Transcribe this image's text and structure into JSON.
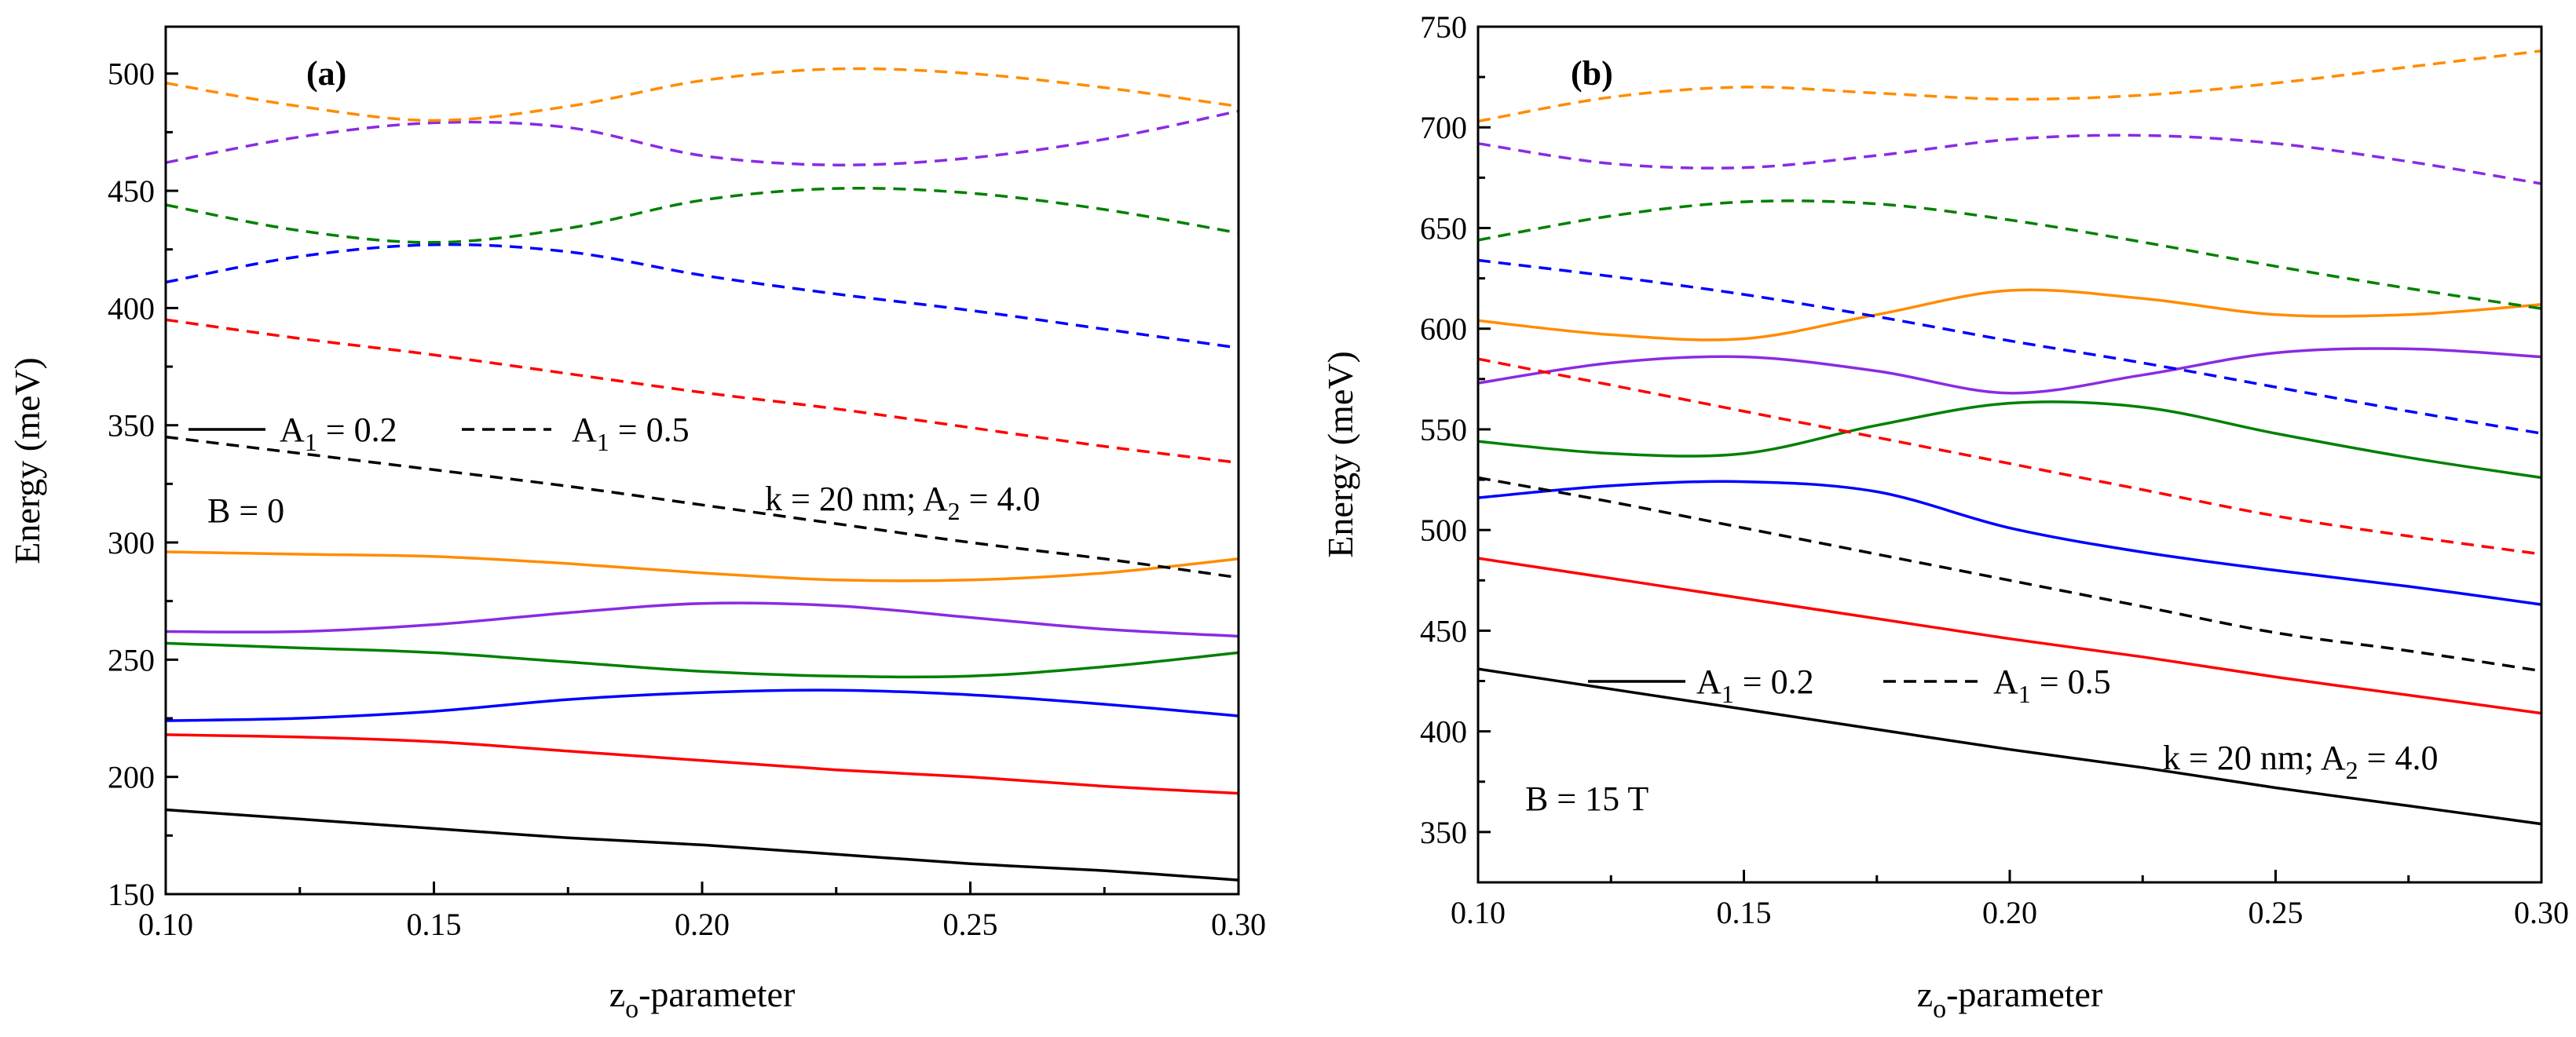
{
  "chart_data": [
    {
      "type": "line",
      "panel_label": "(a)",
      "xlabel": {
        "main": "z",
        "sub": "o",
        "rest": "-parameter"
      },
      "ylabel": "Energy (meV)",
      "xlim": [
        0.1,
        0.3
      ],
      "ylim": [
        150,
        520
      ],
      "xticks": [
        "0.10",
        "0.15",
        "0.20",
        "0.25",
        "0.30"
      ],
      "yticks": [
        "150",
        "200",
        "250",
        "300",
        "350",
        "400",
        "450",
        "500"
      ],
      "legend": {
        "solid": {
          "pre": "A",
          "sub": "1",
          "post": " = 0.2"
        },
        "dashed": {
          "pre": "A",
          "sub": "1",
          "post": " = 0.5"
        }
      },
      "annotations": {
        "field": "B = 0",
        "params": {
          "pre": "k = 20 nm; A",
          "sub": "2",
          "post": " = 4.0"
        }
      },
      "x": [
        0.1,
        0.125,
        0.15,
        0.175,
        0.2,
        0.225,
        0.25,
        0.275,
        0.3
      ],
      "series": [
        {
          "name": "solid-black",
          "style": "solid",
          "color": "#000000",
          "values": [
            186,
            182,
            178,
            174,
            171,
            167,
            163,
            160,
            156
          ]
        },
        {
          "name": "solid-red",
          "style": "solid",
          "color": "#ff0000",
          "values": [
            218,
            217,
            215,
            211,
            207,
            203,
            200,
            196,
            193
          ]
        },
        {
          "name": "solid-blue",
          "style": "solid",
          "color": "#0000ff",
          "values": [
            224,
            225,
            228,
            233,
            236,
            237,
            235,
            231,
            226
          ]
        },
        {
          "name": "solid-green",
          "style": "solid",
          "color": "#008000",
          "values": [
            257,
            255,
            253,
            249,
            245,
            243,
            243,
            247,
            253
          ]
        },
        {
          "name": "solid-violet",
          "style": "solid",
          "color": "#8a2be2",
          "values": [
            262,
            262,
            265,
            270,
            274,
            273,
            268,
            263,
            260
          ]
        },
        {
          "name": "solid-orange",
          "style": "solid",
          "color": "#ff8c00",
          "values": [
            296,
            295,
            294,
            291,
            287,
            284,
            284,
            287,
            293
          ]
        },
        {
          "name": "dashed-black",
          "style": "dashed",
          "color": "#000000",
          "values": [
            345,
            338,
            331,
            324,
            316,
            308,
            300,
            293,
            285
          ]
        },
        {
          "name": "dashed-red",
          "style": "dashed",
          "color": "#ff0000",
          "values": [
            395,
            387,
            380,
            372,
            364,
            357,
            349,
            341,
            334
          ]
        },
        {
          "name": "dashed-blue",
          "style": "dashed",
          "color": "#0000ff",
          "values": [
            411,
            422,
            427,
            424,
            414,
            406,
            399,
            391,
            383
          ]
        },
        {
          "name": "dashed-green",
          "style": "dashed",
          "color": "#008000",
          "values": [
            444,
            433,
            428,
            434,
            446,
            451,
            449,
            442,
            432
          ]
        },
        {
          "name": "dashed-violet",
          "style": "dashed",
          "color": "#8a2be2",
          "values": [
            462,
            473,
            479,
            477,
            465,
            461,
            464,
            472,
            484
          ]
        },
        {
          "name": "dashed-orange",
          "style": "dashed",
          "color": "#ff8c00",
          "values": [
            496,
            486,
            480,
            486,
            497,
            502,
            500,
            494,
            486
          ]
        }
      ]
    },
    {
      "type": "line",
      "panel_label": "(b)",
      "xlabel": {
        "main": "z",
        "sub": "o",
        "rest": "-parameter"
      },
      "ylabel": "Energy (meV)",
      "xlim": [
        0.1,
        0.3
      ],
      "ylim": [
        325,
        750
      ],
      "xticks": [
        "0.10",
        "0.15",
        "0.20",
        "0.25",
        "0.30"
      ],
      "yticks": [
        "350",
        "400",
        "450",
        "500",
        "550",
        "600",
        "650",
        "700",
        "750"
      ],
      "legend": {
        "solid": {
          "pre": "A",
          "sub": "1",
          "post": " = 0.2"
        },
        "dashed": {
          "pre": "A",
          "sub": "1",
          "post": " = 0.5"
        }
      },
      "annotations": {
        "field": "B = 15 T",
        "params": {
          "pre": "k = 20 nm; A",
          "sub": "2",
          "post": " = 4.0"
        }
      },
      "x": [
        0.1,
        0.125,
        0.15,
        0.175,
        0.2,
        0.225,
        0.25,
        0.275,
        0.3
      ],
      "series": [
        {
          "name": "solid-black",
          "style": "solid",
          "color": "#000000",
          "values": [
            431,
            421,
            411,
            401,
            391,
            382,
            372,
            363,
            354
          ]
        },
        {
          "name": "solid-red",
          "style": "solid",
          "color": "#ff0000",
          "values": [
            486,
            476,
            466,
            456,
            446,
            437,
            427,
            418,
            409
          ]
        },
        {
          "name": "solid-blue",
          "style": "solid",
          "color": "#0000ff",
          "values": [
            516,
            522,
            524,
            519,
            501,
            489,
            480,
            472,
            463
          ]
        },
        {
          "name": "solid-green",
          "style": "solid",
          "color": "#008000",
          "values": [
            544,
            538,
            538,
            552,
            563,
            561,
            548,
            536,
            526
          ]
        },
        {
          "name": "solid-violet",
          "style": "solid",
          "color": "#8a2be2",
          "values": [
            573,
            583,
            586,
            579,
            568,
            577,
            588,
            590,
            586
          ]
        },
        {
          "name": "solid-orange",
          "style": "solid",
          "color": "#ff8c00",
          "values": [
            604,
            597,
            595,
            607,
            619,
            615,
            607,
            607,
            612
          ]
        },
        {
          "name": "dashed-black",
          "style": "dashed",
          "color": "#000000",
          "values": [
            526,
            514,
            501,
            488,
            475,
            462,
            449,
            440,
            430
          ]
        },
        {
          "name": "dashed-red",
          "style": "dashed",
          "color": "#ff0000",
          "values": [
            585,
            572,
            559,
            546,
            533,
            520,
            507,
            497,
            488
          ]
        },
        {
          "name": "dashed-blue",
          "style": "dashed",
          "color": "#0000ff",
          "values": [
            634,
            626,
            617,
            606,
            594,
            583,
            571,
            559,
            548
          ]
        },
        {
          "name": "dashed-green",
          "style": "dashed",
          "color": "#008000",
          "values": [
            644,
            656,
            663,
            662,
            654,
            643,
            631,
            620,
            610
          ]
        },
        {
          "name": "dashed-violet",
          "style": "dashed",
          "color": "#8a2be2",
          "values": [
            692,
            682,
            680,
            686,
            694,
            696,
            692,
            683,
            672
          ]
        },
        {
          "name": "dashed-orange",
          "style": "dashed",
          "color": "#ff8c00",
          "values": [
            703,
            715,
            720,
            717,
            714,
            716,
            722,
            730,
            738
          ]
        }
      ]
    }
  ]
}
